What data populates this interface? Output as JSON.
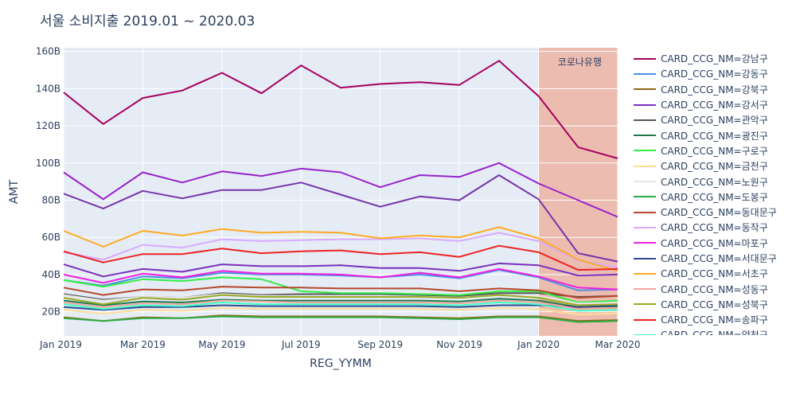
{
  "chart_data": {
    "type": "line",
    "title": "서울 소비지출 2019.01 ~ 2020.03",
    "xlabel": "REG_YYMM",
    "ylabel": "AMT",
    "x": [
      "2019-01",
      "2019-02",
      "2019-03",
      "2019-04",
      "2019-05",
      "2019-06",
      "2019-07",
      "2019-08",
      "2019-09",
      "2019-10",
      "2019-11",
      "2019-12",
      "2020-01",
      "2020-02",
      "2020-03"
    ],
    "x_tick_labels": [
      "Jan 2019",
      "Mar 2019",
      "May 2019",
      "Jul 2019",
      "Sep 2019",
      "Nov 2019",
      "Jan 2020",
      "Mar 2020"
    ],
    "y_tick_labels": [
      "20B",
      "40B",
      "60B",
      "80B",
      "100B",
      "120B",
      "140B",
      "160B"
    ],
    "ylim": [
      7000000000,
      162000000000
    ],
    "grid": true,
    "legend_position": "right",
    "annotation": {
      "text": "코로나유행",
      "x_start": "2020-01",
      "x_end": "2020-03",
      "color": "#eeb4a4"
    },
    "series": [
      {
        "name": "CARD_CCG_NM=강남구",
        "color": "#a5005e",
        "values": [
          138,
          121,
          135,
          139,
          148.5,
          137.5,
          152.5,
          140.5,
          142.5,
          143.5,
          142,
          155,
          136,
          108.5,
          102.5
        ]
      },
      {
        "name": "CARD_CCG_NM=강동구",
        "color": "#4a90e2",
        "values": [
          37,
          34,
          39,
          38,
          41,
          40,
          40,
          39.5,
          38.5,
          40,
          38,
          42.5,
          38.5,
          31.5,
          32
        ]
      },
      {
        "name": "CARD_CCG_NM=강북구",
        "color": "#8b6914",
        "values": [
          17,
          15,
          17,
          16.5,
          18,
          17.5,
          17.5,
          17.5,
          17.5,
          17,
          16.5,
          17.5,
          17.5,
          15,
          15.5
        ]
      },
      {
        "name": "CARD_CCG_NM=강서구",
        "color": "#7b2fbe",
        "values": [
          45.5,
          39,
          43,
          41.5,
          45.5,
          44.5,
          44.5,
          45,
          43.5,
          43.5,
          42,
          46,
          45,
          39.5,
          40
        ]
      },
      {
        "name": "CARD_CCG_NM=관악구",
        "color": "#555555",
        "values": [
          29.5,
          26.5,
          28,
          27.5,
          30,
          29,
          29.5,
          29.5,
          29.5,
          29,
          28.5,
          30,
          30,
          28,
          28.5
        ]
      },
      {
        "name": "CARD_CCG_NM=광진구",
        "color": "#1f7a4d",
        "values": [
          26,
          23.5,
          25.5,
          25,
          26.5,
          26,
          26,
          26,
          26,
          26,
          25.5,
          27,
          26,
          22.5,
          23
        ]
      },
      {
        "name": "CARD_CCG_NM=구로구",
        "color": "#33ee44",
        "values": [
          37,
          33.5,
          37.5,
          36.5,
          38.5,
          37.5,
          31,
          30,
          30,
          29.5,
          29,
          31,
          31,
          25,
          26
        ]
      },
      {
        "name": "CARD_CCG_NM=금천구",
        "color": "#ffdd99",
        "values": [
          21,
          19,
          21,
          20.5,
          22,
          21.5,
          21.5,
          21.5,
          21.5,
          21.5,
          21,
          22,
          21.5,
          18.5,
          19
        ]
      },
      {
        "name": "CARD_CCG_NM=노원구",
        "color": "#e6e6e6",
        "values": [
          29,
          26,
          28,
          27.5,
          29.5,
          28.5,
          28.5,
          28,
          28,
          28,
          27.5,
          29,
          28.5,
          24.5,
          25
        ]
      },
      {
        "name": "CARD_CCG_NM=도봉구",
        "color": "#2eaa44",
        "values": [
          16.5,
          15,
          16.5,
          16.5,
          17.5,
          17,
          17,
          17,
          17,
          16.5,
          16,
          17,
          17,
          14.5,
          15
        ]
      },
      {
        "name": "CARD_CCG_NM=동대문구",
        "color": "#b5482a",
        "values": [
          33,
          29,
          32,
          31.5,
          33.5,
          33,
          33,
          32.5,
          32.5,
          32.5,
          31,
          32.5,
          31.5,
          27.5,
          28.5
        ]
      },
      {
        "name": "CARD_CCG_NM=동작구",
        "color": "#d9aaff",
        "values": [
          52,
          48,
          56,
          54.5,
          59,
          58,
          58.5,
          59,
          59,
          59.5,
          58,
          62.5,
          58,
          47.5,
          44
        ]
      },
      {
        "name": "CARD_CCG_NM=마포구",
        "color": "#ee22dd",
        "values": [
          40,
          35.5,
          40.5,
          38.5,
          42,
          40.5,
          40.5,
          40,
          38.5,
          41,
          38.5,
          43,
          39,
          33,
          32
        ]
      },
      {
        "name": "CARD_CCG_NM=서대문구",
        "color": "#2e4a8a",
        "values": [
          22.5,
          21,
          22.5,
          22.5,
          23.5,
          23,
          23,
          23,
          23,
          23,
          22.5,
          23.5,
          23.5,
          22.5,
          23.5
        ]
      },
      {
        "name": "CARD_CCG_NM=서초구",
        "color": "#ffaa22",
        "values": [
          63.5,
          55,
          63.5,
          61,
          64.5,
          62.5,
          63,
          62.5,
          59.5,
          61,
          60,
          65.5,
          59.5,
          48,
          42
        ]
      },
      {
        "name": "CARD_CCG_NM=성동구",
        "color": "#f4a6a0",
        "values": [
          25,
          22.5,
          24.5,
          24,
          26,
          25.5,
          25,
          25,
          25,
          25,
          24.5,
          26,
          25,
          21.5,
          22
        ]
      },
      {
        "name": "CARD_CCG_NM=성북구",
        "color": "#99aa22",
        "values": [
          27.5,
          24,
          27.5,
          26.5,
          29,
          28,
          28,
          28,
          28,
          28,
          27.5,
          29,
          27.5,
          23.5,
          24
        ]
      },
      {
        "name": "CARD_CCG_NM=송파구",
        "color": "#ee2222",
        "values": [
          52.5,
          46.5,
          51,
          51,
          54,
          51.5,
          52.5,
          53,
          51,
          52,
          49.5,
          55.5,
          52,
          42.5,
          43
        ]
      },
      {
        "name": "CARD_CCG_NM=양천구",
        "color": "#44ffcc",
        "values": [
          24,
          21.5,
          23.5,
          23,
          25,
          24,
          24,
          24,
          24,
          24,
          23.5,
          25,
          24,
          20.5,
          21
        ]
      }
    ],
    "extra_series": [
      {
        "color": "#9922cc",
        "values": [
          95,
          80.5,
          95,
          89.5,
          95.5,
          93,
          97,
          95,
          87,
          93.5,
          92.5,
          100,
          89,
          80,
          71
        ]
      },
      {
        "color": "#7733aa",
        "values": [
          83.5,
          75.5,
          85,
          81,
          85.5,
          85.5,
          89.5,
          83,
          76.5,
          82,
          80,
          93.5,
          80.5,
          51.5,
          47
        ]
      }
    ]
  }
}
